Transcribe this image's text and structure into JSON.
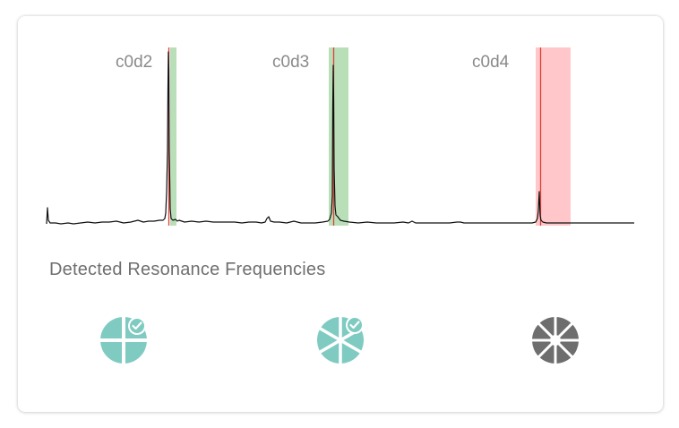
{
  "spectrum": {
    "peaks": [
      {
        "label": "c0d2",
        "status": "detected"
      },
      {
        "label": "c0d3",
        "status": "detected"
      },
      {
        "label": "c0d4",
        "status": "not-detected"
      }
    ]
  },
  "section": {
    "title": "Detected Resonance Frequencies"
  },
  "modes": [
    {
      "name": "c0d2",
      "icon": "mode-c0d2-icon",
      "status": "detected",
      "checked": true,
      "color": "#7fcbc1"
    },
    {
      "name": "c0d3",
      "icon": "mode-c0d3-icon",
      "status": "detected",
      "checked": true,
      "color": "#7fcbc1"
    },
    {
      "name": "c0d4",
      "icon": "mode-c0d4-icon",
      "status": "pending",
      "checked": false,
      "color": "#6e6e6e"
    }
  ],
  "colors": {
    "detected_band": "#b9dfb9",
    "missed_band": "#ffc7c9",
    "marker_line": "#e0403a",
    "trace": "#111111",
    "accent": "#7fcbc1"
  }
}
